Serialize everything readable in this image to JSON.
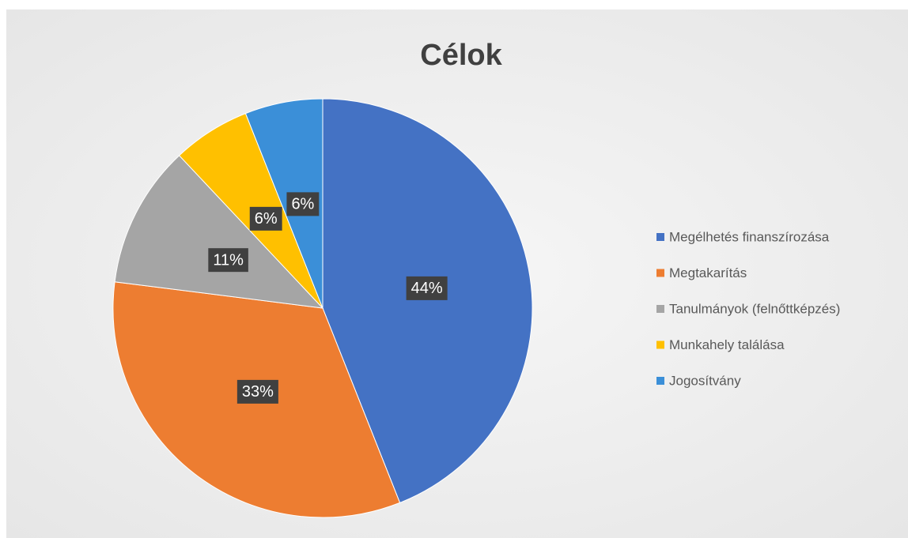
{
  "chart_data": {
    "type": "pie",
    "title": "Célok",
    "categories": [
      "Megélhetés finanszírozása",
      "Megtakarítás",
      "Tanulmányok (felnőttképzés)",
      "Munkahely találása",
      "Jogosítvány"
    ],
    "values": [
      44,
      33,
      11,
      6,
      6
    ],
    "value_labels": [
      "44%",
      "33%",
      "11%",
      "6%",
      "6%"
    ],
    "colors": [
      "#4472c4",
      "#ed7d31",
      "#a5a5a5",
      "#ffc000",
      "#3b8fd8"
    ],
    "legend": "right"
  }
}
